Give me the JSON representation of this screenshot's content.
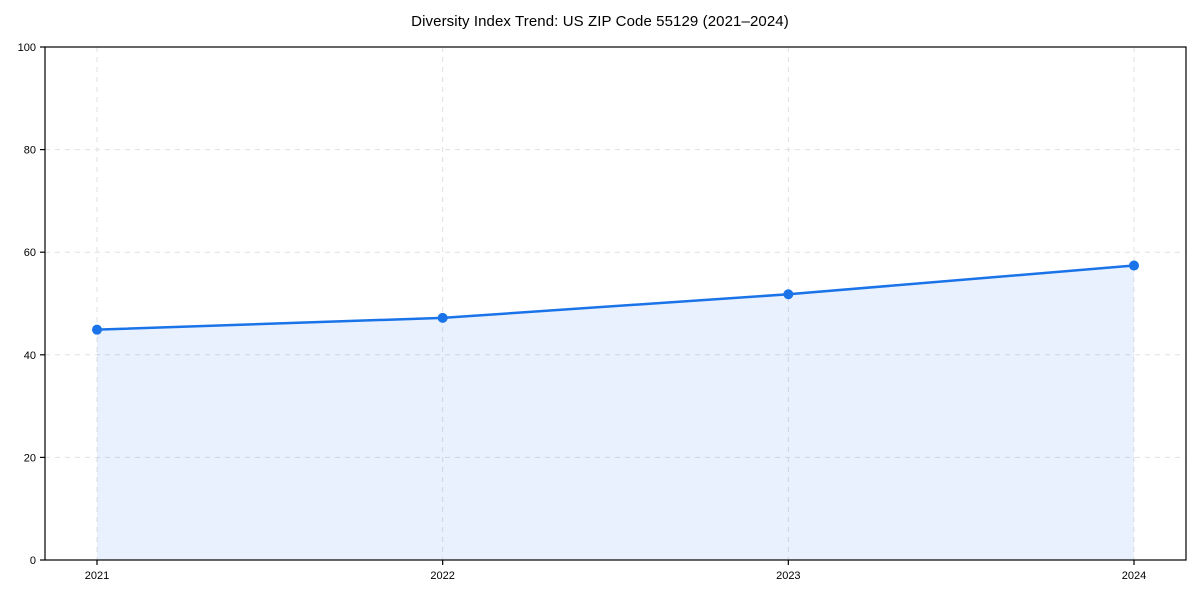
{
  "chart_data": {
    "type": "area",
    "title": "Diversity Index Trend: US ZIP Code 55129 (2021–2024)",
    "x": [
      "2021",
      "2022",
      "2023",
      "2024"
    ],
    "values": [
      44.9,
      47.2,
      51.8,
      57.4
    ],
    "ylim": [
      0,
      100
    ],
    "yticks": [
      0,
      20,
      40,
      60,
      80,
      100
    ],
    "xlabel": "",
    "ylabel": "",
    "legend": "none",
    "grid": "dashed-both-axes",
    "marker": "circle",
    "colors": {
      "line": "#1a73e8",
      "marker": "#1a73e8",
      "fill": "#1a73e8",
      "fill_opacity": 0.1,
      "grid": "#e0e0e0",
      "spine": "#000000",
      "tick_text": "#000000",
      "background": "#ffffff"
    }
  }
}
